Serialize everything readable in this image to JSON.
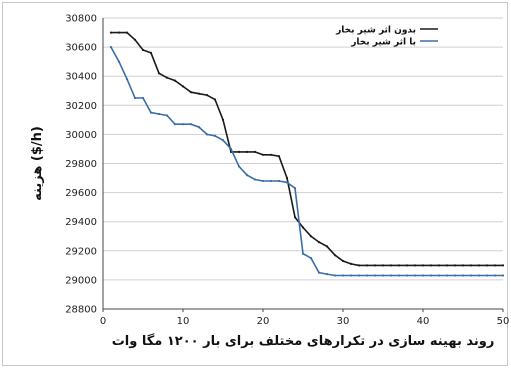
{
  "chart_data": {
    "type": "line",
    "xlabel": "روند بهینه سازی در تکرارهای مختلف برای بار ۱۲۰۰ مگا وات",
    "ylabel": "هزینه ($/h)",
    "xlim": [
      0,
      50
    ],
    "ylim": [
      28800,
      30800
    ],
    "x_ticks": [
      0,
      10,
      20,
      30,
      40,
      50
    ],
    "y_ticks": [
      28800,
      29000,
      29200,
      29400,
      29600,
      29800,
      30000,
      30200,
      30400,
      30600,
      30800
    ],
    "grid": "horizontal",
    "legend_position": "top-right",
    "x": [
      1,
      2,
      3,
      4,
      5,
      6,
      7,
      8,
      9,
      10,
      11,
      12,
      13,
      14,
      15,
      16,
      17,
      18,
      19,
      20,
      21,
      22,
      23,
      24,
      25,
      26,
      27,
      28,
      29,
      30,
      31,
      32,
      33,
      34,
      35,
      36,
      37,
      38,
      39,
      40,
      41,
      42,
      43,
      44,
      45,
      46,
      47,
      48,
      49,
      50
    ],
    "series": [
      {
        "name": "بدون اثر شیر بخار",
        "color": "#1a1a1a",
        "values": [
          30700,
          30700,
          30700,
          30650,
          30580,
          30560,
          30420,
          30390,
          30370,
          30330,
          30290,
          30280,
          30270,
          30240,
          30100,
          29880,
          29880,
          29880,
          29880,
          29860,
          29860,
          29850,
          29700,
          29430,
          29360,
          29300,
          29260,
          29230,
          29170,
          29130,
          29110,
          29100,
          29100,
          29100,
          29100,
          29100,
          29100,
          29100,
          29100,
          29100,
          29100,
          29100,
          29100,
          29100,
          29100,
          29100,
          29100,
          29100,
          29100,
          29100
        ]
      },
      {
        "name": "با اثر شیر بخار",
        "color": "#3b6ea8",
        "values": [
          30600,
          30500,
          30380,
          30250,
          30250,
          30150,
          30140,
          30130,
          30070,
          30070,
          30070,
          30050,
          30000,
          29990,
          29960,
          29900,
          29780,
          29720,
          29690,
          29680,
          29680,
          29680,
          29670,
          29630,
          29180,
          29150,
          29050,
          29040,
          29030,
          29030,
          29030,
          29030,
          29030,
          29030,
          29030,
          29030,
          29030,
          29030,
          29030,
          29030,
          29030,
          29030,
          29030,
          29030,
          29030,
          29030,
          29030,
          29030,
          29030,
          29030
        ]
      }
    ]
  }
}
